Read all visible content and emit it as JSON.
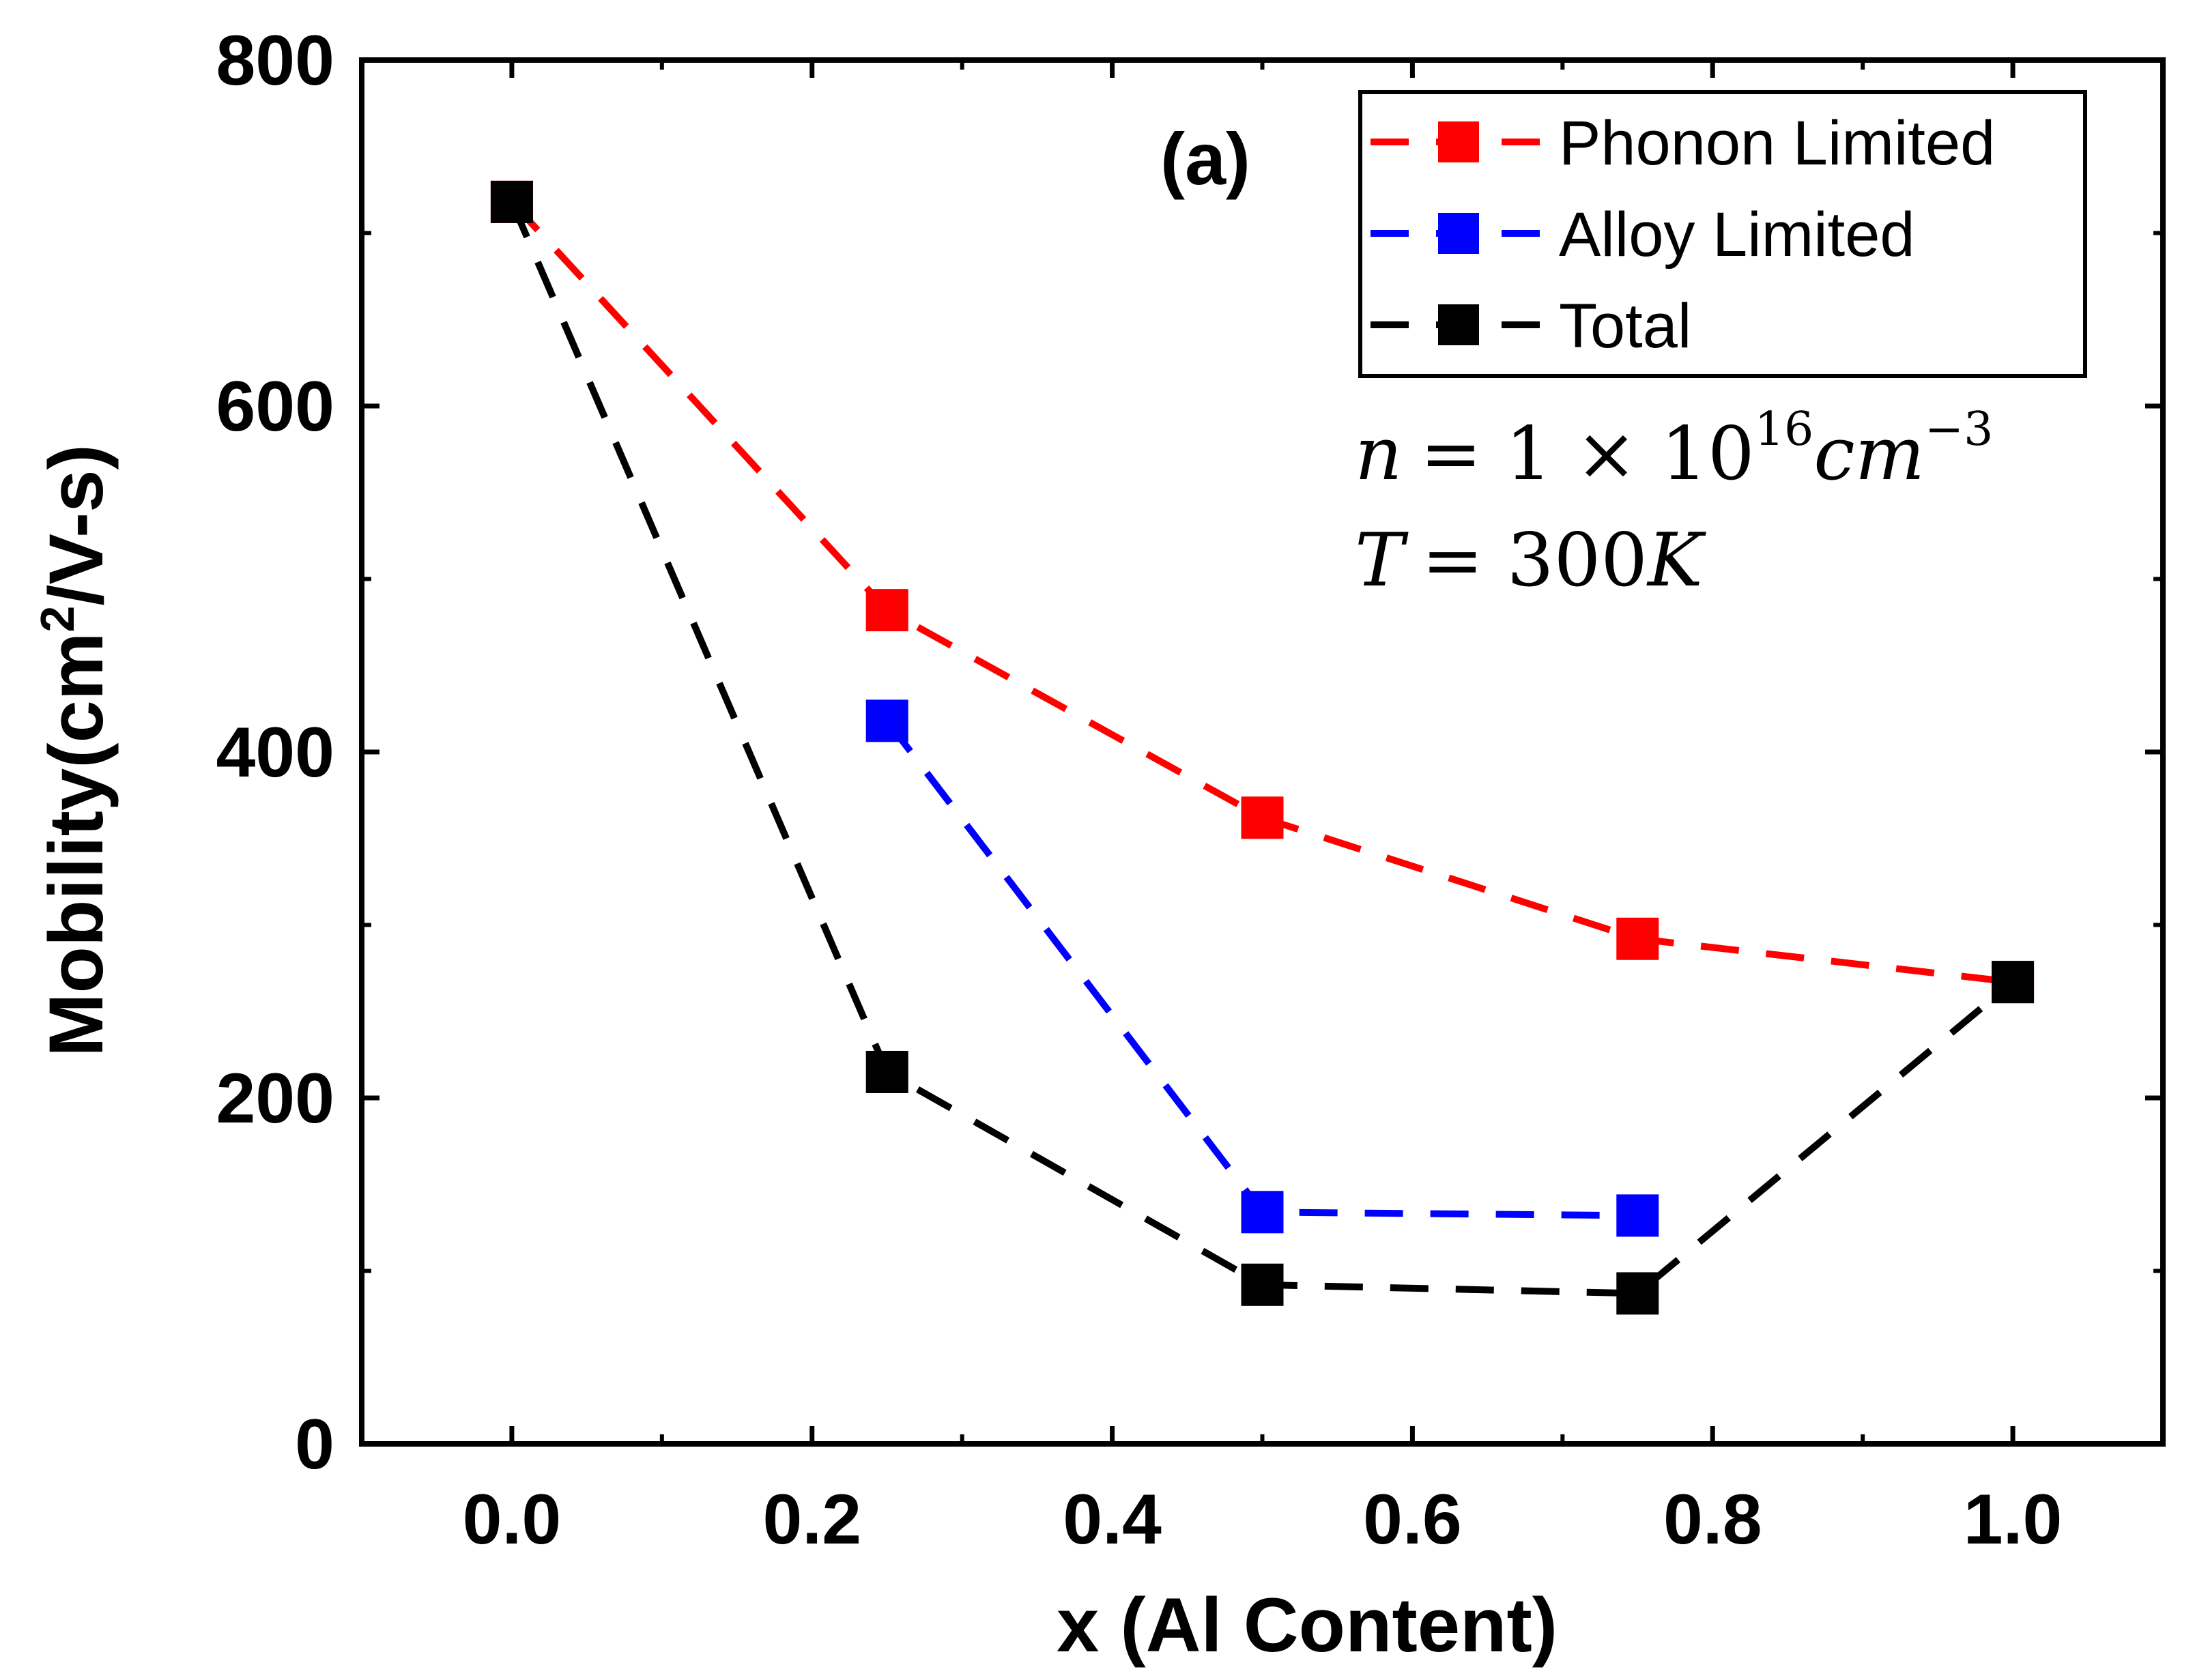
{
  "chart_data": {
    "type": "line",
    "panel_label": "(a)",
    "xlabel": "x (Al Content)",
    "ylabel_main": "Mobility(cm",
    "ylabel_sup": "2",
    "ylabel_tail": "/V-s)",
    "xlim": [
      -0.1,
      1.1
    ],
    "ylim": [
      0,
      800
    ],
    "xticks": [
      0.0,
      0.2,
      0.4,
      0.6,
      0.8,
      1.0
    ],
    "xtick_labels": [
      "0.0",
      "0.2",
      "0.4",
      "0.6",
      "0.8",
      "1.0"
    ],
    "xminor": [
      0.1,
      0.3,
      0.5,
      0.7,
      0.9
    ],
    "yticks": [
      0,
      200,
      400,
      600,
      800
    ],
    "ytick_labels": [
      "0",
      "200",
      "400",
      "600",
      "800"
    ],
    "yminor": [
      100,
      300,
      500,
      700
    ],
    "grid": false,
    "legend_position": "top-right",
    "series": [
      {
        "name": "Phonon Limited",
        "color": "#ff0000",
        "x": [
          0.0,
          0.25,
          0.5,
          0.75,
          1.0
        ],
        "y": [
          718,
          482,
          362,
          292,
          267
        ]
      },
      {
        "name": "Alloy Limited",
        "color": "#0000ff",
        "x": [
          0.25,
          0.5,
          0.75
        ],
        "y": [
          418,
          134,
          132
        ]
      },
      {
        "name": "Total",
        "color": "#000000",
        "x": [
          0.0,
          0.25,
          0.5,
          0.75,
          1.0
        ],
        "y": [
          718,
          215,
          92,
          87,
          267
        ]
      }
    ],
    "annotations": {
      "density_lhs": "n",
      "density_eq": "= 1 × 10",
      "density_exp": "16",
      "density_unit": "cm",
      "density_unit_exp": "−3",
      "temp_lhs": "T",
      "temp_rhs": "= 300",
      "temp_unit": "K"
    }
  }
}
